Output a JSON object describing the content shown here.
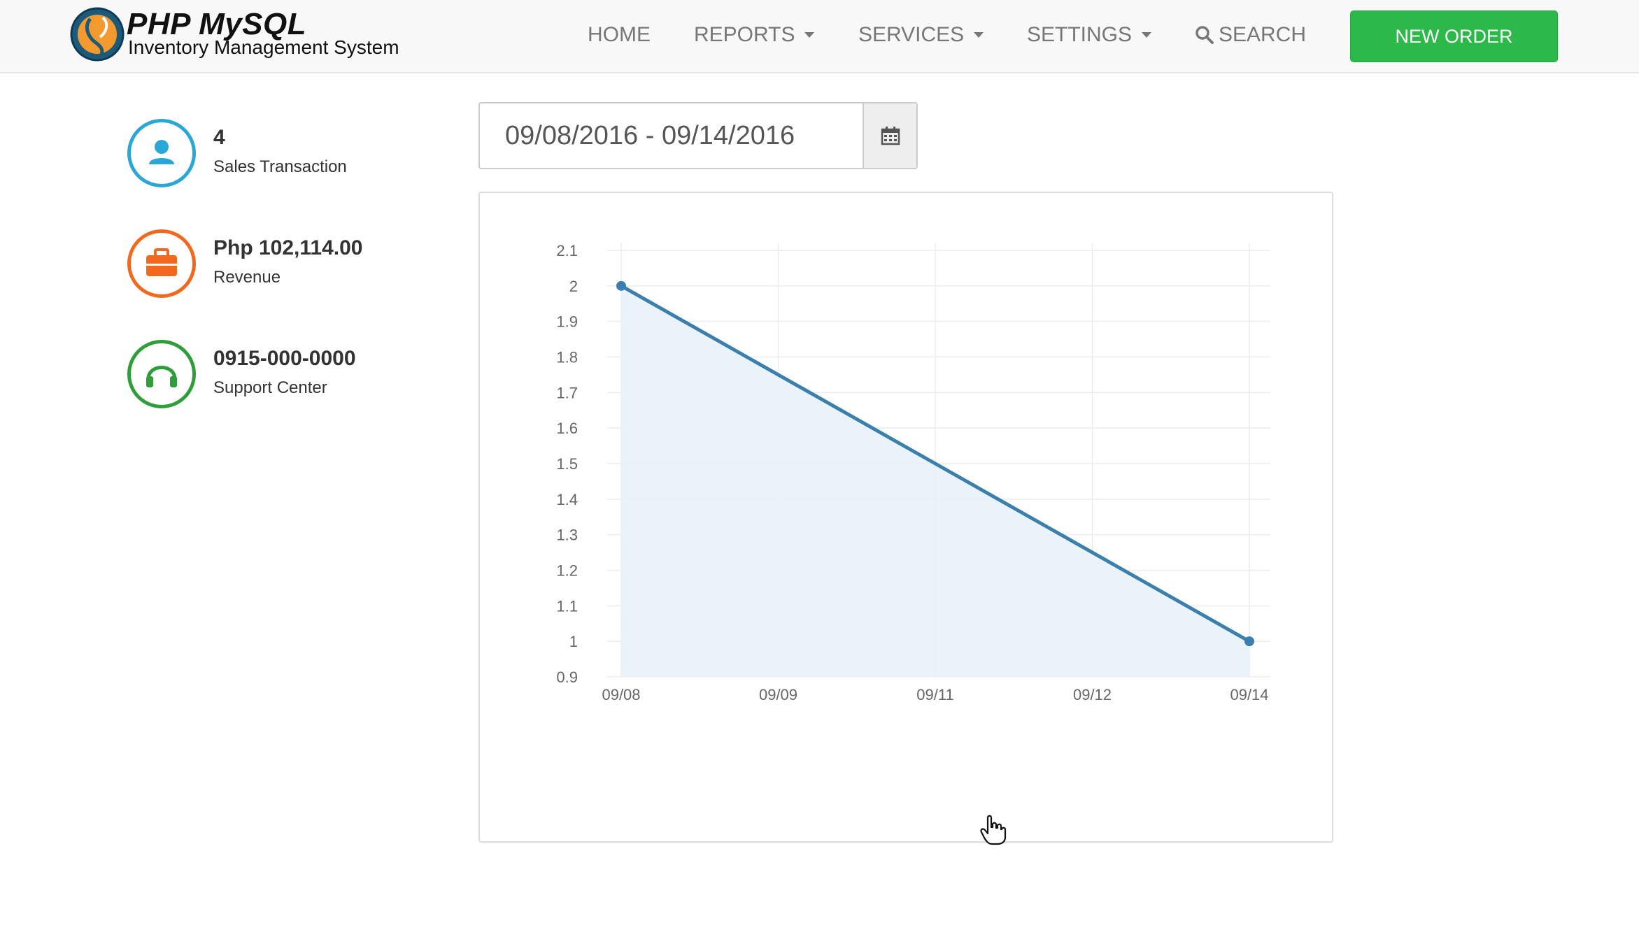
{
  "brand": {
    "title": "PHP MySQL",
    "subtitle": "Inventory Management System"
  },
  "nav": {
    "home": "HOME",
    "reports": "REPORTS",
    "services": "SERVICES",
    "settings": "SETTINGS",
    "search": "SEARCH",
    "new_order": "NEW ORDER"
  },
  "info": [
    {
      "value": "4",
      "label": "Sales Transaction",
      "icon": "user-icon",
      "color": "#2aa7d6"
    },
    {
      "value": "Php 102,114.00",
      "label": "Revenue",
      "icon": "briefcase-icon",
      "color": "#f2691e"
    },
    {
      "value": "0915-000-0000",
      "label": "Support Center",
      "icon": "headphones-icon",
      "color": "#2f9e3a"
    }
  ],
  "date_range": {
    "value": "09/08/2016 - 09/14/2016",
    "icon": "calendar-icon"
  },
  "colors": {
    "nav_bg": "#f8f8f8",
    "button_green": "#2db84a",
    "line": "#3a7fad",
    "area_fill": "#e8f1f9"
  },
  "chart_data": {
    "type": "area",
    "x": [
      "09/08",
      "09/09",
      "09/11",
      "09/12",
      "09/14"
    ],
    "series": [
      {
        "values": [
          2,
          1.75,
          1.5,
          1.25,
          1
        ]
      }
    ],
    "points_marked": [
      "09/08",
      "09/14"
    ],
    "yticks": [
      "2.1",
      "2",
      "1.9",
      "1.8",
      "1.7",
      "1.6",
      "1.5",
      "1.4",
      "1.3",
      "1.2",
      "1.1",
      "1",
      "0.9"
    ],
    "ylim": [
      0.9,
      2.1
    ],
    "grid": true,
    "title": "",
    "xlabel": "",
    "ylabel": ""
  }
}
